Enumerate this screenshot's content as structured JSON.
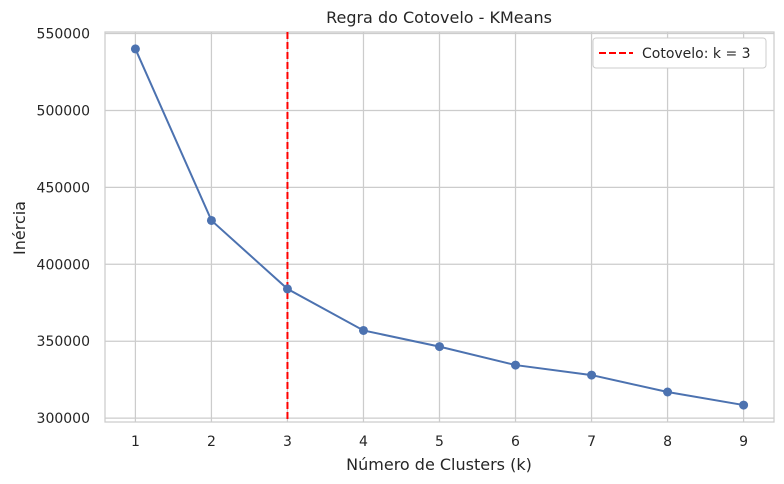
{
  "chart_data": {
    "type": "line",
    "title": "Regra do Cotovelo - KMeans",
    "xlabel": "Número de Clusters (k)",
    "ylabel": "Inércia",
    "x": [
      1,
      2,
      3,
      4,
      5,
      6,
      7,
      8,
      9
    ],
    "series": [
      {
        "values": [
          540000,
          428500,
          384000,
          357000,
          346500,
          334500,
          328000,
          317000,
          308500
        ],
        "color": "#4c72b0",
        "marker": "circle"
      }
    ],
    "xlim": [
      0.6,
      9.4
    ],
    "ylim": [
      297500,
      551000
    ],
    "xticks": [
      "1",
      "2",
      "3",
      "4",
      "5",
      "6",
      "7",
      "8",
      "9"
    ],
    "yticks": [
      300000,
      350000,
      400000,
      450000,
      500000,
      550000
    ],
    "ytick_labels": [
      "300000",
      "350000",
      "400000",
      "450000",
      "500000",
      "550000"
    ],
    "grid": true,
    "legend_position": "top-right",
    "annotations": [
      {
        "type": "vline",
        "x": 3,
        "color": "#ff0000",
        "style": "dashed",
        "label": "Cotovelo: k = 3"
      }
    ]
  }
}
